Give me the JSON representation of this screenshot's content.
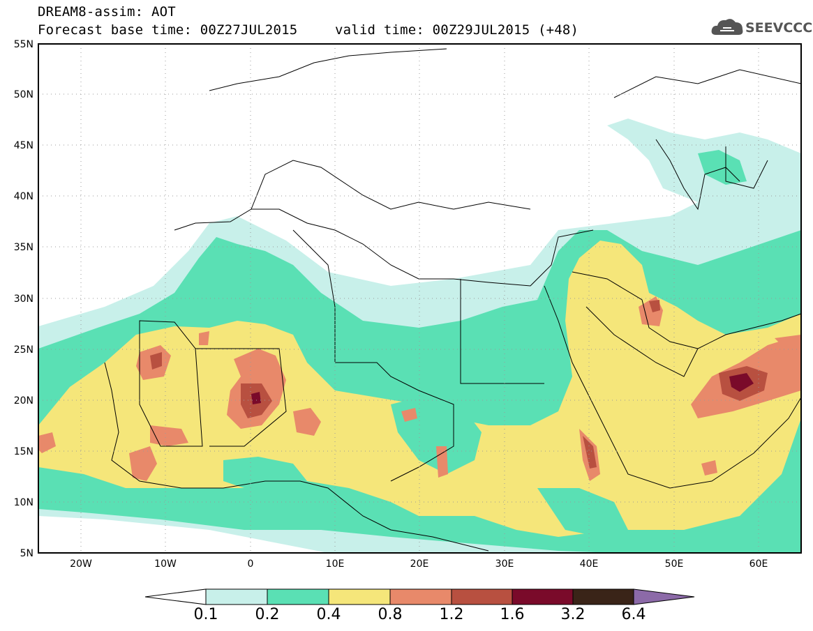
{
  "header": {
    "title": "DREAM8-assim: AOT",
    "base_time": "Forecast base time: 00Z27JUL2015",
    "valid_time": "valid time: 00Z29JUL2015 (+48)",
    "logo_text": "SEEVCCC",
    "logo_icon": "cloud-icon"
  },
  "map": {
    "lat_labels": [
      "55N",
      "50N",
      "45N",
      "40N",
      "35N",
      "30N",
      "25N",
      "20N",
      "15N",
      "10N",
      "5N"
    ],
    "lon_labels": [
      "20W",
      "10W",
      "0",
      "10E",
      "20E",
      "30E",
      "40E",
      "50E",
      "60E"
    ],
    "field": "AOT",
    "extent": {
      "lon": [
        -25,
        65
      ],
      "lat": [
        5,
        55
      ]
    }
  },
  "colorbar": {
    "labels": [
      "0.1",
      "0.2",
      "0.4",
      "0.8",
      "1.2",
      "1.6",
      "3.2",
      "6.4"
    ],
    "colors": [
      "#ffffff",
      "#c8f0ea",
      "#5ae0b4",
      "#f5e67a",
      "#e8896a",
      "#b85040",
      "#7a0a2a",
      "#3a2418",
      "#8c6aa8"
    ]
  }
}
